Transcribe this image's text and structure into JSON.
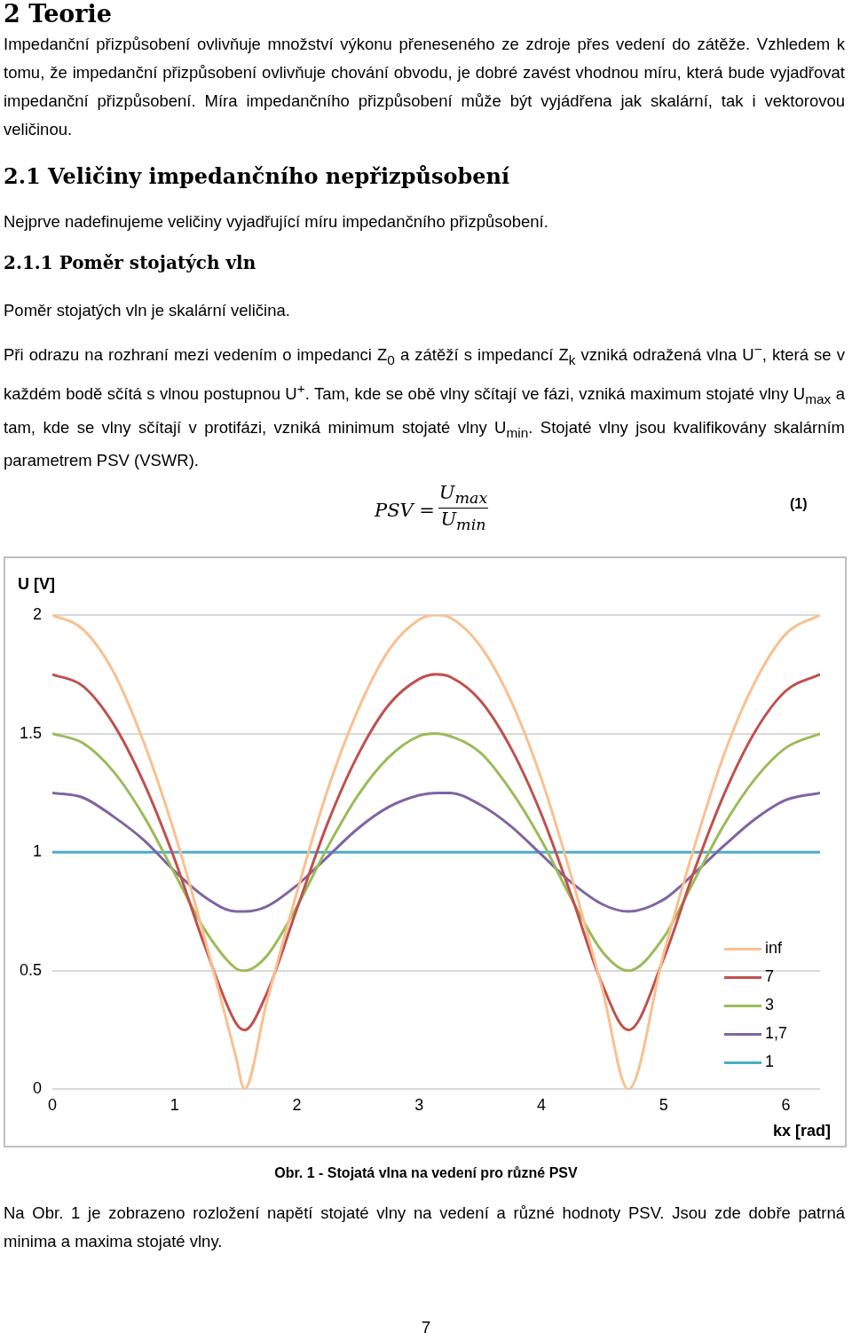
{
  "chart_data": {
    "type": "line",
    "title": "Obr. 1 - Stojatá vlna na vedení pro různé PSV",
    "xlabel": "kx [rad]",
    "ylabel": "U [V]",
    "xlim": [
      0,
      6.28
    ],
    "xticks": [
      0,
      1,
      2,
      3,
      4,
      5,
      6
    ],
    "ylim": [
      0,
      2
    ],
    "yticks": [
      0,
      0.5,
      1,
      1.5,
      2
    ],
    "grid": "y",
    "legend": "bottom right",
    "marker": "none",
    "line_style": "solid",
    "x": [
      0,
      0.25,
      0.5,
      0.75,
      1,
      1.25,
      1.5,
      1.571,
      1.75,
      2,
      2.25,
      2.5,
      2.75,
      3,
      3.14,
      3.25,
      3.5,
      3.75,
      4,
      4.25,
      4.5,
      4.712,
      5,
      5.25,
      5.5,
      5.75,
      6,
      6.28
    ],
    "series": [
      {
        "name": "inf",
        "color": "#f9c08f",
        "values": [
          2,
          1.94,
          1.76,
          1.46,
          1.08,
          0.63,
          0.14,
          0,
          0.36,
          0.83,
          1.26,
          1.6,
          1.85,
          1.98,
          2,
          1.99,
          1.87,
          1.64,
          1.31,
          0.89,
          0.42,
          0,
          0.57,
          1.02,
          1.42,
          1.72,
          1.92,
          2
        ]
      },
      {
        "name": "7",
        "color": "#c0504d",
        "values": [
          1.75,
          1.7,
          1.54,
          1.29,
          0.97,
          0.6,
          0.28,
          0.25,
          0.4,
          0.76,
          1.12,
          1.41,
          1.62,
          1.73,
          1.75,
          1.74,
          1.64,
          1.44,
          1.16,
          0.81,
          0.44,
          0.25,
          0.55,
          0.92,
          1.25,
          1.51,
          1.68,
          1.75
        ]
      },
      {
        "name": "3",
        "color": "#9bbb59",
        "values": [
          1.5,
          1.46,
          1.34,
          1.15,
          0.91,
          0.67,
          0.51,
          0.5,
          0.56,
          0.77,
          1.02,
          1.24,
          1.4,
          1.49,
          1.5,
          1.49,
          1.42,
          1.26,
          1.05,
          0.8,
          0.58,
          0.5,
          0.64,
          0.88,
          1.12,
          1.31,
          1.44,
          1.5
        ]
      },
      {
        "name": "1,7",
        "color": "#8064a2",
        "values": [
          1.25,
          1.23,
          1.15,
          1.05,
          0.92,
          0.81,
          0.75,
          0.75,
          0.77,
          0.86,
          0.98,
          1.1,
          1.19,
          1.24,
          1.25,
          1.25,
          1.2,
          1.11,
          0.99,
          0.87,
          0.78,
          0.75,
          0.8,
          0.91,
          1.03,
          1.14,
          1.22,
          1.25
        ]
      },
      {
        "name": "1",
        "color": "#4bacc6",
        "x": [
          0,
          6.28
        ],
        "values": [
          1,
          1
        ]
      }
    ],
    "annotations": [
      "2 Teorie",
      "Impedanční přizpůsobení ovlivňuje množství výkonu přeneseného ze zdroje přes vedení do zátěže. Vzhledem k tomu, že impedanční přizpůsobení ovlivňuje chování obvodu, je dobré zavést vhodnou míru, která bude vyjadřovat impedanční přizpůsobení. Míra impedančního přizpůsobení může být vyjádřena jak skalární, tak i vektorovou veličinou.",
      "2.1 Veličiny impedančního nepřizpůsobení",
      "Nejprve nadefinujeme veličiny vyjadřující míru impedančního přizpůsobení.",
      "2.1.1 Poměr stojatých vln",
      "Poměr stojatých vln je skalární veličina.",
      "Při odrazu na rozhraní mezi vedením o impedanci Z$_{0}$ a zátěží s impedancí Z$_{k}$ vzniká odražená vlna U$^{−}$, která se v každém bodě sčítá s vlnou postupnou U$^{+}$. Tam, kde se obě vlny sčítají ve fázi, vzniká maximum stojaté vlny U$_{max}$ a tam, kde se vlny sčítají v protifázi, vzniká minimum stojaté vlny U$_{min}$. Stojaté vlny jsou kvalifikovány skalárním parametrem PSV (VSWR).",
      "PSV =",
      "U$_{max}$",
      "U$_{min}$",
      "(1)",
      "Na Obr. 1 je zobrazeno rozložení napětí stojaté vlny na vedení a různé hodnoty PSV. Jsou zde dobře patrná minima a maxima stojaté vlny.",
      "7"
    ]
  }
}
